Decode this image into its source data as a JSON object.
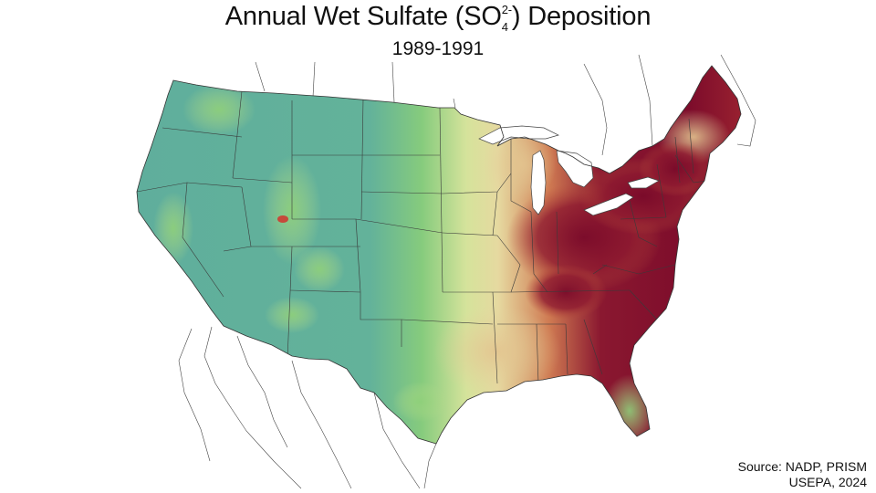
{
  "title": {
    "prefix": "Annual Wet Sulfate (SO",
    "subscript": "4",
    "superscript": "2-",
    "suffix": ") Deposition"
  },
  "subtitle": "1989-1991",
  "source": {
    "line1": "Source: NADP, PRISM",
    "line2": "USEPA, 2024"
  },
  "colors": {
    "low": "#5eb09a",
    "low_mid": "#8ccf7a",
    "mid": "#d8e29a",
    "mid_high": "#e9d7a0",
    "high": "#c45a3a",
    "very_high": "#7d0c2b",
    "boundary": "#3a3a3a",
    "outside_boundary": "#555555"
  }
}
